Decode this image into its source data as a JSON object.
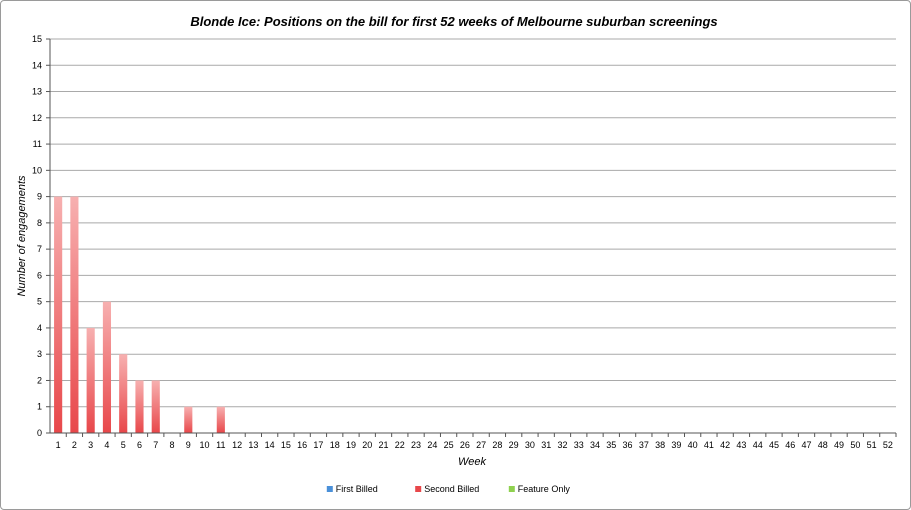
{
  "chart_data": {
    "type": "bar",
    "title": "Blonde Ice: Positions on the bill for first 52 weeks of Melbourne suburban screenings",
    "xlabel": "Week",
    "ylabel": "Number of engagements",
    "ylim": [
      0,
      15
    ],
    "yticks": [
      "0",
      "1",
      "2",
      "3",
      "4",
      "5",
      "6",
      "7",
      "8",
      "9",
      "10",
      "11",
      "12",
      "13",
      "14",
      "15"
    ],
    "categories": [
      "1",
      "2",
      "3",
      "4",
      "5",
      "6",
      "7",
      "8",
      "9",
      "10",
      "11",
      "12",
      "13",
      "14",
      "15",
      "16",
      "17",
      "18",
      "19",
      "20",
      "21",
      "22",
      "23",
      "24",
      "25",
      "26",
      "27",
      "28",
      "29",
      "30",
      "31",
      "32",
      "33",
      "34",
      "35",
      "36",
      "37",
      "38",
      "39",
      "40",
      "41",
      "42",
      "43",
      "44",
      "45",
      "46",
      "47",
      "48",
      "49",
      "50",
      "51",
      "52"
    ],
    "series": [
      {
        "name": "First Billed",
        "color": "#4a90d9",
        "values": [
          0,
          0,
          0,
          0,
          0,
          0,
          0,
          0,
          0,
          0,
          0,
          0,
          0,
          0,
          0,
          0,
          0,
          0,
          0,
          0,
          0,
          0,
          0,
          0,
          0,
          0,
          0,
          0,
          0,
          0,
          0,
          0,
          0,
          0,
          0,
          0,
          0,
          0,
          0,
          0,
          0,
          0,
          0,
          0,
          0,
          0,
          0,
          0,
          0,
          0,
          0,
          0
        ]
      },
      {
        "name": "Second Billed",
        "color": "#e8474a",
        "values": [
          9,
          9,
          4,
          5,
          3,
          2,
          2,
          0,
          1,
          0,
          1,
          0,
          0,
          0,
          0,
          0,
          0,
          0,
          0,
          0,
          0,
          0,
          0,
          0,
          0,
          0,
          0,
          0,
          0,
          0,
          0,
          0,
          0,
          0,
          0,
          0,
          0,
          0,
          0,
          0,
          0,
          0,
          0,
          0,
          0,
          0,
          0,
          0,
          0,
          0,
          0,
          0
        ]
      },
      {
        "name": "Feature Only",
        "color": "#8fd14f",
        "values": [
          0,
          0,
          0,
          0,
          0,
          0,
          0,
          0,
          0,
          0,
          0,
          0,
          0,
          0,
          0,
          0,
          0,
          0,
          0,
          0,
          0,
          0,
          0,
          0,
          0,
          0,
          0,
          0,
          0,
          0,
          0,
          0,
          0,
          0,
          0,
          0,
          0,
          0,
          0,
          0,
          0,
          0,
          0,
          0,
          0,
          0,
          0,
          0,
          0,
          0,
          0,
          0
        ]
      }
    ],
    "grid": true,
    "legend": "bottom-center"
  }
}
